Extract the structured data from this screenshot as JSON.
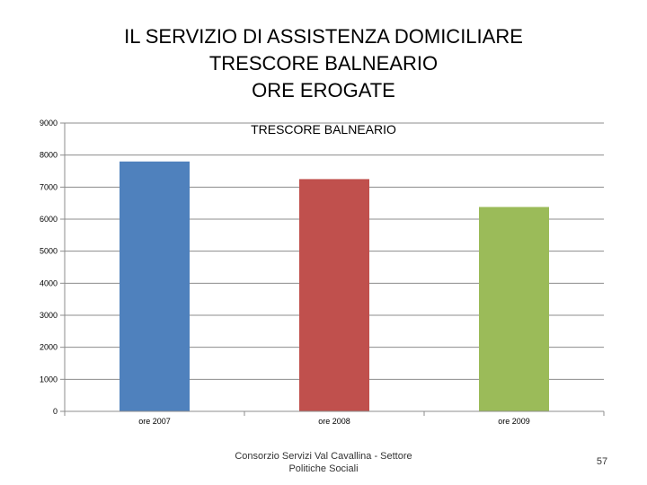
{
  "slide": {
    "title_lines": [
      "IL SERVIZIO DI ASSISTENZA DOMICILIARE",
      "TRESCORE BALNEARIO",
      "ORE EROGATE"
    ],
    "footer_lines": [
      "Consorzio Servizi Val Cavallina - Settore",
      "Politiche Sociali"
    ],
    "page_number": "57"
  },
  "chart_data": {
    "type": "bar",
    "title": "TRESCORE BALNEARIO",
    "categories": [
      "ore 2007",
      "ore 2008",
      "ore 2009"
    ],
    "values": [
      7800,
      7250,
      6380
    ],
    "colors": [
      "#4F81BD",
      "#C0504D",
      "#9BBB59"
    ],
    "ylim": [
      0,
      9000
    ],
    "yticks": [
      0,
      1000,
      2000,
      3000,
      4000,
      5000,
      6000,
      7000,
      8000,
      9000
    ],
    "grid": true,
    "legend": "none"
  }
}
